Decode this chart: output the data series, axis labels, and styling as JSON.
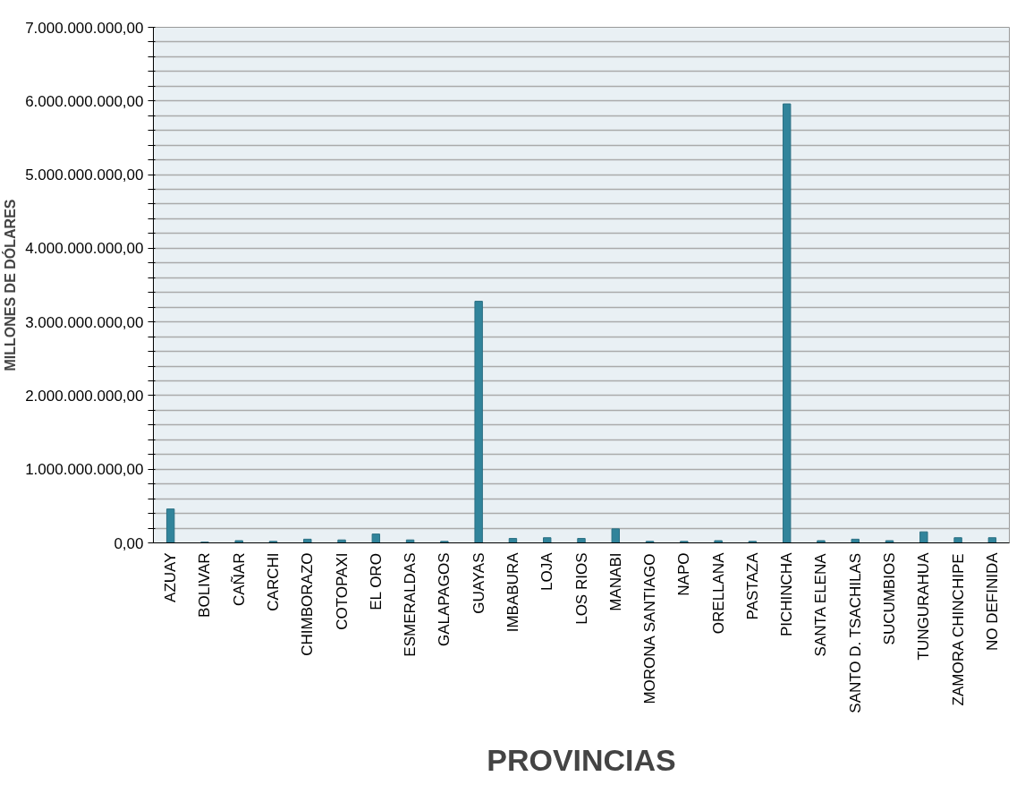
{
  "chart_data": {
    "type": "bar",
    "xlabel": "PROVINCIAS",
    "ylabel": "MILLONES DE DÓLARES",
    "categories": [
      "AZUAY",
      "BOLIVAR",
      "CAÑAR",
      "CARCHI",
      "CHIMBORAZO",
      "COTOPAXI",
      "EL ORO",
      "ESMERALDAS",
      "GALAPAGOS",
      "GUAYAS",
      "IMBABURA",
      "LOJA",
      "LOS RIOS",
      "MANABI",
      "MORONA SANTIAGO",
      "NAPO",
      "ORELLANA",
      "PASTAZA",
      "PICHINCHA",
      "SANTA ELENA",
      "SANTO D. TSACHILAS",
      "SUCUMBIOS",
      "TUNGURAHUA",
      "ZAMORA CHINCHIPE",
      "NO DEFINIDA"
    ],
    "values": [
      460000000,
      10000000,
      30000000,
      20000000,
      50000000,
      40000000,
      120000000,
      40000000,
      20000000,
      3280000000,
      60000000,
      70000000,
      60000000,
      190000000,
      20000000,
      20000000,
      30000000,
      20000000,
      5960000000,
      30000000,
      50000000,
      30000000,
      150000000,
      70000000,
      70000000
    ],
    "color": "#31849b",
    "ylim": [
      0,
      7000000000
    ],
    "yticks": [
      {
        "value": 0,
        "label": "0,00"
      },
      {
        "value": 200000000,
        "label": null
      },
      {
        "value": 400000000,
        "label": null
      },
      {
        "value": 600000000,
        "label": null
      },
      {
        "value": 800000000,
        "label": null
      },
      {
        "value": 1000000000,
        "label": "1.000.000.000,00"
      },
      {
        "value": 1200000000,
        "label": null
      },
      {
        "value": 1400000000,
        "label": null
      },
      {
        "value": 1600000000,
        "label": null
      },
      {
        "value": 1800000000,
        "label": null
      },
      {
        "value": 2000000000,
        "label": "2.000.000.000,00"
      },
      {
        "value": 2200000000,
        "label": null
      },
      {
        "value": 2400000000,
        "label": null
      },
      {
        "value": 2600000000,
        "label": null
      },
      {
        "value": 2800000000,
        "label": null
      },
      {
        "value": 3000000000,
        "label": "3.000.000.000,00"
      },
      {
        "value": 3200000000,
        "label": null
      },
      {
        "value": 3400000000,
        "label": null
      },
      {
        "value": 3600000000,
        "label": null
      },
      {
        "value": 3800000000,
        "label": null
      },
      {
        "value": 4000000000,
        "label": "4.000.000.000,00"
      },
      {
        "value": 4200000000,
        "label": null
      },
      {
        "value": 4400000000,
        "label": null
      },
      {
        "value": 4600000000,
        "label": null
      },
      {
        "value": 4800000000,
        "label": null
      },
      {
        "value": 5000000000,
        "label": "5.000.000.000,00"
      },
      {
        "value": 5200000000,
        "label": null
      },
      {
        "value": 5400000000,
        "label": null
      },
      {
        "value": 5600000000,
        "label": null
      },
      {
        "value": 5800000000,
        "label": null
      },
      {
        "value": 6000000000,
        "label": "6.000.000.000,00"
      },
      {
        "value": 6200000000,
        "label": null
      },
      {
        "value": 6400000000,
        "label": null
      },
      {
        "value": 6600000000,
        "label": null
      },
      {
        "value": 6800000000,
        "label": null
      },
      {
        "value": 7000000000,
        "label": "7.000.000.000,00"
      }
    ],
    "grid": "y"
  }
}
